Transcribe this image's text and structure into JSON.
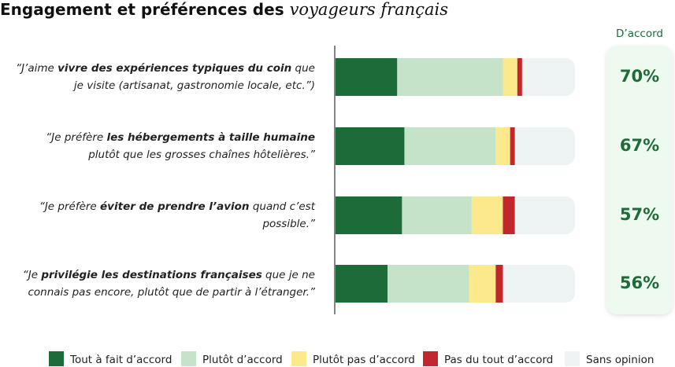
{
  "chart_data": {
    "type": "bar",
    "orientation": "horizontal",
    "stacked": true,
    "title": {
      "text": "Engagement et préférences des ",
      "emphasis": "voyageurs français"
    },
    "categories": [
      [
        {
          "text": "“J’aime ",
          "bold": false
        },
        {
          "text": "vivre des expériences typiques du coin",
          "bold": true
        },
        {
          "text": " que je visite (artisanat, gastronomie locale, etc.”)",
          "bold": false
        }
      ],
      [
        {
          "text": "“Je préfère ",
          "bold": false
        },
        {
          "text": "les hébergements à taille humaine",
          "bold": true
        },
        {
          "text": " plutôt que les grosses chaînes hôtelières.”",
          "bold": false
        }
      ],
      [
        {
          "text": "“Je préfère ",
          "bold": false
        },
        {
          "text": "éviter de prendre l’avion",
          "bold": true
        },
        {
          "text": " quand c’est possible.”",
          "bold": false
        }
      ],
      [
        {
          "text": "“Je ",
          "bold": false
        },
        {
          "text": "privilégie les destinations françaises",
          "bold": true
        },
        {
          "text": " que je ne connais pas encore, plutôt que de partir à l’étranger.”",
          "bold": false
        }
      ]
    ],
    "series": [
      {
        "name": "Tout à fait d’accord",
        "color": "#1e6b3a",
        "values": [
          26,
          29,
          28,
          22
        ]
      },
      {
        "name": "Plutôt d’accord",
        "color": "#c4e3c9",
        "values": [
          44,
          38,
          29,
          34
        ]
      },
      {
        "name": "Plutôt pas d’accord",
        "color": "#fce98c",
        "values": [
          6,
          6,
          13,
          11
        ]
      },
      {
        "name": "Pas du tout d’accord",
        "color": "#c0282d",
        "values": [
          2,
          2,
          5,
          3
        ]
      },
      {
        "name": "Sans opinion",
        "color": "#eef3f3",
        "values": [
          22,
          25,
          25,
          30
        ]
      }
    ],
    "xlim": [
      0,
      100
    ],
    "agree": {
      "title": "D’accord",
      "color": "#1e6b3a",
      "values": [
        70,
        67,
        57,
        56
      ],
      "value_labels": [
        "70%",
        "67%",
        "57%",
        "56%"
      ]
    }
  }
}
